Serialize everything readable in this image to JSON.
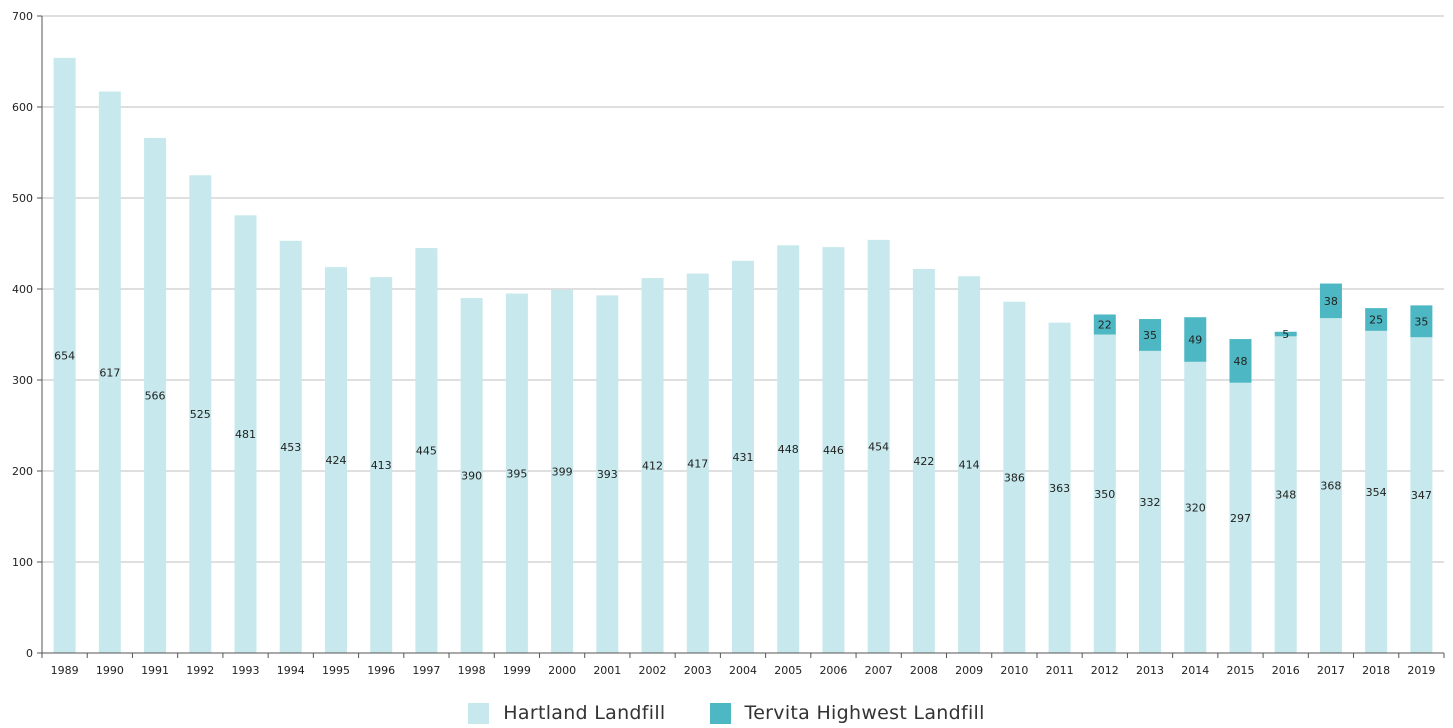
{
  "colors": {
    "hartland": "#c7e8ec",
    "tervita": "#4db8c4",
    "grid": "#bfbfbf",
    "axis": "#555555"
  },
  "legend": [
    {
      "label": "Hartland Landfill",
      "color": "#c7e8ec"
    },
    {
      "label": "Tervita Highwest Landfill",
      "color": "#4db8c4"
    }
  ],
  "chart_data": {
    "type": "bar",
    "stacked": true,
    "title": "",
    "xlabel": "",
    "ylabel": "",
    "ylim": [
      0,
      700
    ],
    "yticks": [
      0,
      100,
      200,
      300,
      400,
      500,
      600,
      700
    ],
    "grid": true,
    "legend_position": "bottom",
    "categories": [
      "1989",
      "1990",
      "1991",
      "1992",
      "1993",
      "1994",
      "1995",
      "1996",
      "1997",
      "1998",
      "1999",
      "2000",
      "2001",
      "2002",
      "2003",
      "2004",
      "2005",
      "2006",
      "2007",
      "2008",
      "2009",
      "2010",
      "2011",
      "2012",
      "2013",
      "2014",
      "2015",
      "2016",
      "2017",
      "2018",
      "2019"
    ],
    "series": [
      {
        "name": "Hartland Landfill",
        "color": "#c7e8ec",
        "values": [
          654,
          617,
          566,
          525,
          481,
          453,
          424,
          413,
          445,
          390,
          395,
          399,
          393,
          412,
          417,
          431,
          448,
          446,
          454,
          422,
          414,
          386,
          363,
          350,
          332,
          320,
          297,
          348,
          368,
          354,
          347
        ]
      },
      {
        "name": "Tervita Highwest Landfill",
        "color": "#4db8c4",
        "values": [
          null,
          null,
          null,
          null,
          null,
          null,
          null,
          null,
          null,
          null,
          null,
          null,
          null,
          null,
          null,
          null,
          null,
          null,
          null,
          null,
          null,
          null,
          null,
          22,
          35,
          49,
          48,
          5,
          38,
          25,
          35
        ]
      }
    ]
  }
}
